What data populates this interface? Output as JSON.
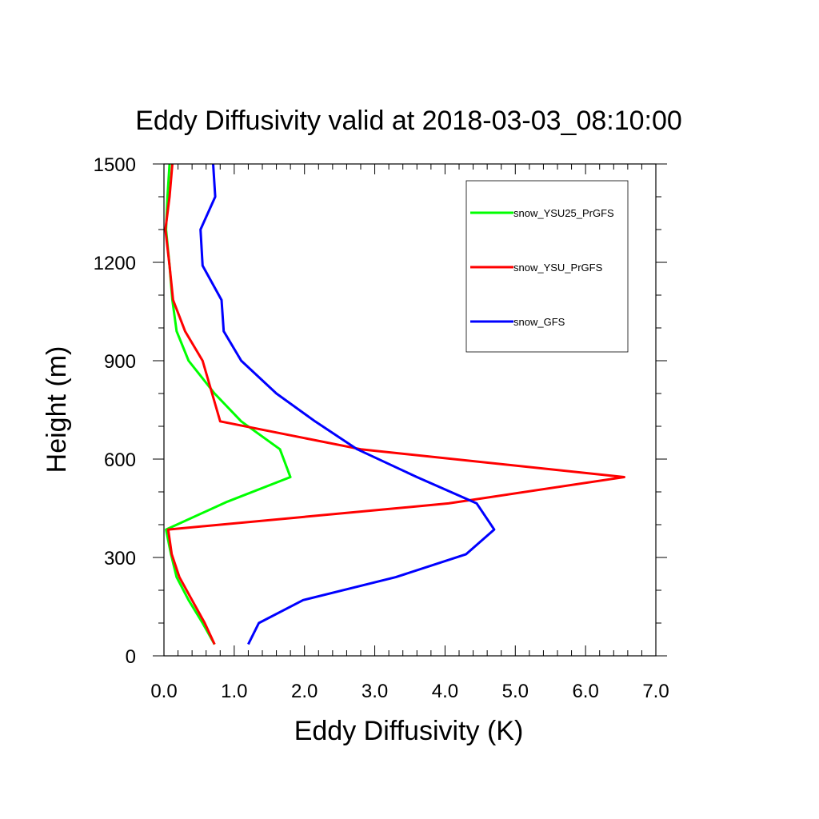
{
  "chart_data": {
    "type": "line",
    "title": "Eddy Diffusivity valid at 2018-03-03_08:10:00",
    "xlabel": "Eddy Diffusivity (K)",
    "ylabel": "Height (m)",
    "xlim": [
      0,
      7
    ],
    "ylim": [
      0,
      1500
    ],
    "x_ticks": [
      "0.0",
      "1.0",
      "2.0",
      "3.0",
      "4.0",
      "5.0",
      "6.0",
      "7.0"
    ],
    "y_ticks": [
      "0",
      "300",
      "600",
      "900",
      "1200",
      "1500"
    ],
    "grid": false,
    "legend_position": "top-right",
    "series": [
      {
        "name": "snow_YSU25_PrGFS",
        "color": "#00ff00",
        "points": [
          [
            0.72,
            35
          ],
          [
            0.55,
            100
          ],
          [
            0.35,
            170
          ],
          [
            0.18,
            240
          ],
          [
            0.1,
            310
          ],
          [
            0.03,
            385
          ],
          [
            0.9,
            470
          ],
          [
            1.8,
            545
          ],
          [
            1.65,
            630
          ],
          [
            1.1,
            715
          ],
          [
            0.72,
            800
          ],
          [
            0.35,
            900
          ],
          [
            0.18,
            990
          ],
          [
            0.12,
            1085
          ],
          [
            0.08,
            1190
          ],
          [
            0.03,
            1300
          ],
          [
            0.05,
            1400
          ],
          [
            0.08,
            1500
          ]
        ]
      },
      {
        "name": "snow_YSU_PrGFS",
        "color": "#ff0000",
        "points": [
          [
            0.72,
            35
          ],
          [
            0.58,
            100
          ],
          [
            0.4,
            170
          ],
          [
            0.22,
            240
          ],
          [
            0.11,
            310
          ],
          [
            0.06,
            385
          ],
          [
            4.05,
            465
          ],
          [
            6.55,
            545
          ],
          [
            2.8,
            630
          ],
          [
            0.8,
            715
          ],
          [
            0.55,
            900
          ],
          [
            0.3,
            990
          ],
          [
            0.13,
            1085
          ],
          [
            0.08,
            1190
          ],
          [
            0.02,
            1300
          ],
          [
            0.08,
            1400
          ],
          [
            0.12,
            1500
          ]
        ]
      },
      {
        "name": "snow_GFS",
        "color": "#0000ff",
        "points": [
          [
            1.2,
            35
          ],
          [
            1.35,
            100
          ],
          [
            1.98,
            170
          ],
          [
            3.3,
            240
          ],
          [
            4.3,
            310
          ],
          [
            4.7,
            385
          ],
          [
            4.45,
            465
          ],
          [
            3.6,
            545
          ],
          [
            2.75,
            630
          ],
          [
            2.15,
            715
          ],
          [
            1.6,
            800
          ],
          [
            1.1,
            900
          ],
          [
            0.85,
            990
          ],
          [
            0.82,
            1085
          ],
          [
            0.55,
            1190
          ],
          [
            0.52,
            1300
          ],
          [
            0.73,
            1400
          ],
          [
            0.7,
            1500
          ]
        ]
      }
    ]
  }
}
